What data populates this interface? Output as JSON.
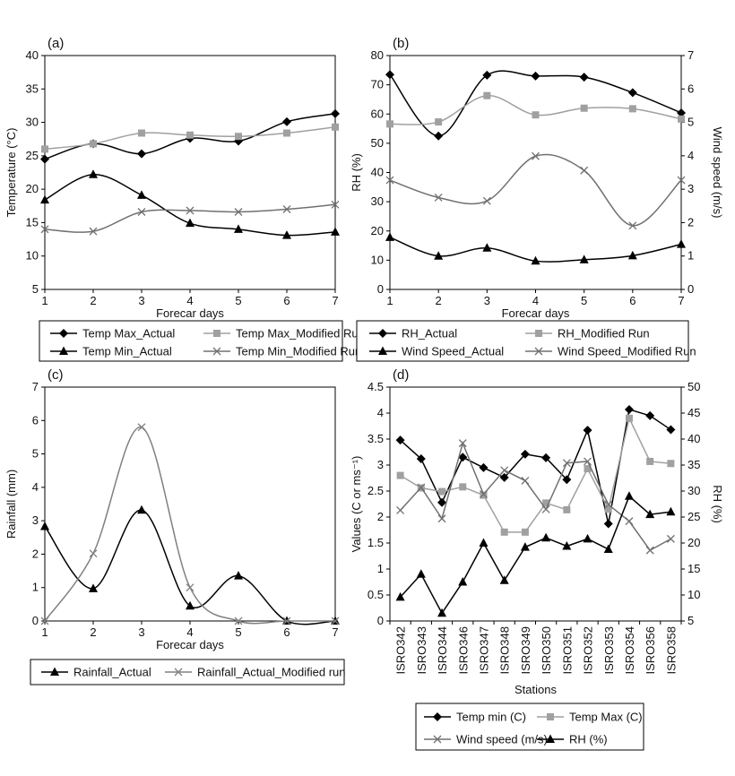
{
  "chart_data": [
    {
      "type": "line",
      "panel": "(a)",
      "xlabel": "Forecar days",
      "ylabel": "Temperature (°C)",
      "ylim": [
        5,
        40
      ],
      "yticks": [
        5,
        10,
        15,
        20,
        25,
        30,
        35,
        40
      ],
      "x": [
        1,
        2,
        3,
        4,
        5,
        6,
        7
      ],
      "series": [
        {
          "name": "Temp Max_Actual",
          "values": [
            24.5,
            26.8,
            25.3,
            27.6,
            27.2,
            30.1,
            31.3
          ],
          "color": "#000000",
          "marker": "diamond"
        },
        {
          "name": "Temp Max_Modified Run",
          "values": [
            26.0,
            26.8,
            28.4,
            28.1,
            27.9,
            28.4,
            29.3
          ],
          "color": "#a0a0a0",
          "marker": "square"
        },
        {
          "name": "Temp Min_Actual",
          "values": [
            18.4,
            22.2,
            19.1,
            14.9,
            14.0,
            13.1,
            13.6
          ],
          "color": "#000000",
          "marker": "triangle"
        },
        {
          "name": "Temp Min_Modified Run",
          "values": [
            14.0,
            13.7,
            16.6,
            16.8,
            16.6,
            17.0,
            17.7
          ],
          "color": "#707070",
          "marker": "x"
        }
      ],
      "legend": [
        "Temp Max_Actual",
        "Temp Max_Modified Run",
        "Temp Min_Actual",
        "Temp Min_Modified Run"
      ]
    },
    {
      "type": "line",
      "panel": "(b)",
      "xlabel": "Forecar days",
      "ylabel": "RH (%)",
      "y2label": "Wind speed (m/s)",
      "ylim": [
        0,
        80
      ],
      "yticks": [
        0,
        10,
        20,
        30,
        40,
        50,
        60,
        70,
        80
      ],
      "y2lim": [
        0,
        7
      ],
      "y2ticks": [
        0,
        1,
        2,
        3,
        4,
        5,
        6,
        7
      ],
      "x": [
        1,
        2,
        3,
        4,
        5,
        6,
        7
      ],
      "series": [
        {
          "name": "RH_Actual",
          "axis": "left",
          "values": [
            73.5,
            52.5,
            73.3,
            73.0,
            72.6,
            67.3,
            60.4
          ],
          "color": "#000000",
          "marker": "diamond"
        },
        {
          "name": "RH_Modified Run",
          "axis": "left",
          "values": [
            56.6,
            57.3,
            66.3,
            59.7,
            62.0,
            61.8,
            58.3
          ],
          "color": "#a0a0a0",
          "marker": "square"
        },
        {
          "name": "Wind Speed_Actual",
          "axis": "right",
          "values": [
            1.56,
            1.0,
            1.24,
            0.85,
            0.89,
            1.01,
            1.35
          ],
          "color": "#000000",
          "marker": "triangle"
        },
        {
          "name": "Wind Speed_Modified Run",
          "axis": "right",
          "values": [
            3.27,
            2.75,
            2.65,
            3.99,
            3.56,
            1.91,
            3.27
          ],
          "color": "#707070",
          "marker": "x"
        }
      ],
      "legend": [
        "RH_Actual",
        "RH_Modified Run",
        "Wind Speed_Actual",
        "Wind Speed_Modified Run"
      ]
    },
    {
      "type": "line",
      "panel": "(c)",
      "xlabel": "Forecar days",
      "ylabel": "Rainfall (mm)",
      "ylim": [
        0,
        7
      ],
      "yticks": [
        0,
        1,
        2,
        3,
        4,
        5,
        6,
        7
      ],
      "x": [
        1,
        2,
        3,
        4,
        5,
        6,
        7
      ],
      "series": [
        {
          "name": "Rainfall_Actual",
          "values": [
            2.83,
            0.97,
            3.32,
            0.45,
            1.35,
            0.0,
            0.0
          ],
          "color": "#000000",
          "marker": "triangle"
        },
        {
          "name": "Rainfall_Actual_Modified run",
          "values": [
            0.0,
            2.02,
            5.8,
            1.0,
            0.0,
            0.0,
            0.0
          ],
          "color": "#808080",
          "marker": "x"
        }
      ],
      "legend": [
        "Rainfall_Actual",
        "Rainfall_Actual_Modified run"
      ]
    },
    {
      "type": "line",
      "panel": "(d)",
      "xlabel": "Stations",
      "ylabel": "Values (C or ms⁻¹)",
      "y2label": "RH (%)",
      "ylim": [
        0,
        4.5
      ],
      "yticks": [
        "0",
        "0.5",
        "1",
        "1.5",
        "2",
        "2.5",
        "3",
        "3.5",
        "4",
        "4.5"
      ],
      "y2lim": [
        5,
        50
      ],
      "y2ticks": [
        5,
        10,
        15,
        20,
        25,
        30,
        35,
        40,
        45,
        50
      ],
      "categories": [
        "ISRO342",
        "ISRO343",
        "ISRO344",
        "ISRO346",
        "ISRO347",
        "ISRO348",
        "ISRO349",
        "ISRO350",
        "ISRO351",
        "ISRO352",
        "ISRO353",
        "ISRO354",
        "ISRO356",
        "ISRO358"
      ],
      "series": [
        {
          "name": "Temp min (C)",
          "axis": "left",
          "values": [
            3.48,
            3.12,
            2.28,
            3.15,
            2.95,
            2.76,
            3.21,
            3.14,
            2.72,
            3.67,
            1.87,
            4.07,
            3.95,
            3.68
          ],
          "color": "#000000",
          "marker": "diamond"
        },
        {
          "name": "Temp Max (C)",
          "axis": "left",
          "values": [
            2.8,
            2.56,
            2.49,
            2.58,
            2.42,
            1.71,
            1.71,
            2.27,
            2.14,
            2.93,
            2.15,
            3.9,
            3.07,
            3.03
          ],
          "color": "#a0a0a0",
          "marker": "square"
        },
        {
          "name": "Wind speed (m/s)",
          "axis": "left",
          "values": [
            2.13,
            2.57,
            1.97,
            3.42,
            2.44,
            2.9,
            2.7,
            2.15,
            3.04,
            3.07,
            2.24,
            1.92,
            1.36,
            1.58
          ],
          "color": "#707070",
          "marker": "x"
        },
        {
          "name": "RH (%)",
          "axis": "right",
          "values": [
            9.6,
            14.0,
            6.5,
            12.5,
            20.0,
            12.8,
            19.2,
            21.0,
            19.4,
            20.8,
            18.8,
            29.0,
            25.5,
            26.0
          ],
          "color": "#000000",
          "marker": "triangle"
        }
      ],
      "legend": [
        "Temp min (C)",
        "Temp Max (C)",
        "Wind speed (m/s)",
        "RH (%)"
      ]
    }
  ]
}
